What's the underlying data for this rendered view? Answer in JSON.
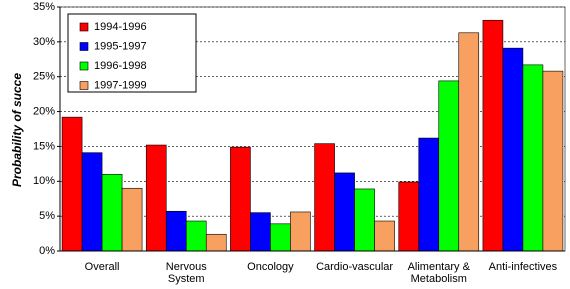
{
  "chart_data": {
    "type": "bar",
    "y_label": "Probability of succe",
    "categories": [
      "Overall",
      "Nervous System",
      "Oncology",
      "Cardio-vascular",
      "Alimentary & Metabolism",
      "Anti-infectives"
    ],
    "series": [
      {
        "name": "1994-1996",
        "color": "#ff0000",
        "values": [
          19.2,
          15.2,
          14.9,
          15.4,
          9.9,
          33.1
        ]
      },
      {
        "name": "1995-1997",
        "color": "#0000ff",
        "values": [
          14.1,
          5.7,
          5.5,
          11.2,
          16.2,
          29.1
        ]
      },
      {
        "name": "1996-1998",
        "color": "#00ff00",
        "values": [
          11.0,
          4.3,
          3.9,
          8.9,
          24.4,
          26.7
        ]
      },
      {
        "name": "1997-1999",
        "color": "#f7a060",
        "values": [
          9.0,
          2.4,
          5.6,
          4.3,
          31.3,
          25.8
        ]
      }
    ],
    "ylim": [
      0,
      35
    ],
    "yticks": [
      {
        "value": 0,
        "label": "0%"
      },
      {
        "value": 5,
        "label": "5%"
      },
      {
        "value": 10,
        "label": "10%"
      },
      {
        "value": 15,
        "label": "15%"
      },
      {
        "value": 20,
        "label": "20%"
      },
      {
        "value": 25,
        "label": "25%"
      },
      {
        "value": 30,
        "label": "30%"
      },
      {
        "value": 35,
        "label": "35%"
      }
    ],
    "grid": true,
    "legend": "top-left"
  }
}
